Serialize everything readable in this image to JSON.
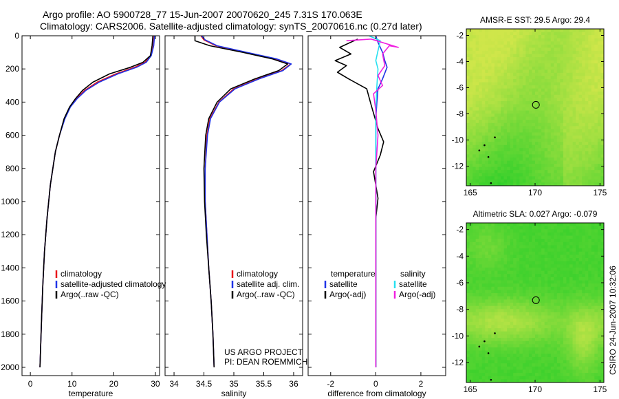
{
  "header": {
    "line1": "Argo profile: AO 5900728_77 15-Jun-2007 20070620_245 7.31S 170.063E",
    "line2": "Climatology: CARS2006. Satellite-adjusted climatology: synTS_20070616.nc (0.27d later)"
  },
  "footer": {
    "project": "US ARGO PROJECT",
    "pi": "PI: DEAN ROEMMICH",
    "stamp": "CSIRO 24-Jun-2007 10:32:06"
  },
  "colors": {
    "climatology": "#e8161a",
    "satellite": "#1f33e6",
    "argo": "#000000",
    "sat_salinity": "#26e0f0",
    "argo_salinity": "#f020e0",
    "map_green": "#2fcf2a",
    "map_yellow": "#cfe64a"
  },
  "chart_data": [
    {
      "type": "line",
      "name": "temperature",
      "xlabel": "temperature",
      "xlim": [
        -2,
        31
      ],
      "ylim": [
        2050,
        0
      ],
      "xticks": [
        "0",
        "10",
        "20",
        "30"
      ],
      "xtick_values": [
        0,
        10,
        20,
        30
      ],
      "yticks": [
        "0",
        "200",
        "400",
        "600",
        "800",
        "1000",
        "1200",
        "1400",
        "1600",
        "1800",
        "2000"
      ],
      "ytick_values": [
        0,
        200,
        400,
        600,
        800,
        1000,
        1200,
        1400,
        1600,
        1800,
        2000
      ],
      "legend": [
        "climatology",
        "satellite-adjusted climatology",
        "Argo(..raw -QC)"
      ],
      "series": [
        {
          "name": "climatology",
          "x": [
            29.7,
            29.5,
            28.9,
            27.5,
            25.0,
            20.5,
            16.0,
            13.0,
            11.0,
            9.5,
            8.2,
            7.0,
            6.0,
            4.8,
            4.0,
            3.4,
            3.0,
            2.7,
            2.5,
            2.3
          ],
          "y": [
            0,
            60,
            120,
            160,
            190,
            230,
            280,
            330,
            380,
            430,
            500,
            600,
            700,
            900,
            1100,
            1300,
            1500,
            1700,
            1850,
            2000
          ]
        },
        {
          "name": "satellite",
          "x": [
            29.8,
            29.6,
            29.0,
            27.8,
            25.5,
            21.0,
            16.5,
            13.3,
            11.2,
            9.6,
            8.3,
            7.0,
            6.0,
            4.8,
            4.0,
            3.4,
            3.0,
            2.7,
            2.5,
            2.3
          ],
          "y": [
            0,
            60,
            120,
            160,
            190,
            230,
            280,
            330,
            380,
            430,
            500,
            600,
            700,
            900,
            1100,
            1300,
            1500,
            1700,
            1850,
            2000
          ]
        },
        {
          "name": "argo",
          "x": [
            29.4,
            29.2,
            28.8,
            27.0,
            24.0,
            19.0,
            15.0,
            12.5,
            10.8,
            9.4,
            8.1,
            7.0,
            6.0,
            4.8,
            4.0,
            3.4,
            3.0,
            2.7,
            2.5,
            2.3
          ],
          "y": [
            0,
            60,
            120,
            160,
            190,
            230,
            280,
            330,
            380,
            430,
            500,
            600,
            700,
            900,
            1100,
            1300,
            1500,
            1700,
            1850,
            2000
          ]
        }
      ]
    },
    {
      "type": "line",
      "name": "salinity",
      "xlabel": "salinity",
      "xlim": [
        33.85,
        36.15
      ],
      "ylim": [
        2050,
        0
      ],
      "xticks": [
        "34",
        "34.5",
        "35",
        "35.5",
        "36"
      ],
      "xtick_values": [
        34,
        34.5,
        35,
        35.5,
        36
      ],
      "legend": [
        "climatology",
        "satellite adj. clim.",
        "Argo(..raw -QC)"
      ],
      "series": [
        {
          "name": "climatology",
          "x": [
            34.45,
            34.5,
            34.7,
            35.2,
            35.7,
            35.95,
            35.8,
            35.4,
            35.0,
            34.75,
            34.6,
            34.55,
            34.52,
            34.52,
            34.55,
            34.58,
            34.62,
            34.65,
            34.67
          ],
          "y": [
            0,
            25,
            60,
            100,
            140,
            170,
            210,
            260,
            320,
            400,
            500,
            600,
            800,
            1000,
            1200,
            1400,
            1600,
            1800,
            2000
          ]
        },
        {
          "name": "satellite",
          "x": [
            34.46,
            34.52,
            34.72,
            35.22,
            35.72,
            35.96,
            35.82,
            35.42,
            35.02,
            34.76,
            34.61,
            34.56,
            34.52,
            34.52,
            34.55,
            34.58,
            34.62,
            34.65,
            34.67
          ],
          "y": [
            0,
            25,
            60,
            100,
            140,
            170,
            210,
            260,
            320,
            400,
            500,
            600,
            800,
            1000,
            1200,
            1400,
            1600,
            1800,
            2000
          ]
        },
        {
          "name": "argo",
          "x": [
            34.35,
            34.35,
            34.6,
            35.15,
            35.65,
            35.9,
            35.75,
            35.35,
            34.95,
            34.72,
            34.58,
            34.53,
            34.5,
            34.51,
            34.54,
            34.58,
            34.62,
            34.65,
            34.67
          ],
          "y": [
            0,
            30,
            60,
            100,
            140,
            170,
            210,
            260,
            320,
            400,
            500,
            600,
            800,
            1000,
            1200,
            1400,
            1600,
            1800,
            2000
          ]
        }
      ]
    },
    {
      "type": "line",
      "name": "difference",
      "xlabel": "difference from climatology",
      "xlim": [
        -3,
        3.1
      ],
      "ylim": [
        2050,
        0
      ],
      "xticks": [
        "-2",
        "0",
        "2"
      ],
      "xtick_values": [
        -2,
        0,
        2
      ],
      "legend_temperature": [
        "temperature",
        "satellite",
        "Argo(-adj)"
      ],
      "legend_salinity": [
        "salinity",
        "satellite",
        "Argo(-adj)"
      ],
      "series": [
        {
          "name": "temperature-satellite",
          "x": [
            0.0,
            0.1,
            0.3,
            0.4,
            0.5,
            0.3,
            0.1,
            0.05,
            0.0,
            0.0,
            0.0,
            0.0
          ],
          "y": [
            0,
            40,
            100,
            150,
            190,
            260,
            320,
            400,
            500,
            700,
            1000,
            2000
          ]
        },
        {
          "name": "temperature-argo",
          "x": [
            -0.8,
            -1.6,
            -1.1,
            -1.8,
            -1.3,
            -1.7,
            -1.2,
            -0.4,
            -0.2,
            0.1,
            0.35,
            0.2,
            -0.1,
            0.1,
            0.0,
            0.0
          ],
          "y": [
            20,
            70,
            110,
            150,
            180,
            220,
            260,
            320,
            420,
            560,
            640,
            720,
            820,
            980,
            1100,
            2000
          ]
        },
        {
          "name": "salinity-satellite",
          "x": [
            -0.3,
            0.2,
            0.1,
            0.0,
            0.1,
            0.05,
            0.0,
            0.0
          ],
          "y": [
            0,
            30,
            90,
            150,
            200,
            300,
            450,
            2000
          ]
        },
        {
          "name": "salinity-argo",
          "x": [
            -1.3,
            -0.2,
            1.0,
            0.6,
            0.3,
            0.4,
            0.1,
            0.3,
            -0.1,
            0.0,
            0.1,
            0.0,
            0.0
          ],
          "y": [
            30,
            20,
            70,
            60,
            110,
            180,
            240,
            300,
            350,
            450,
            600,
            800,
            2000
          ]
        }
      ]
    },
    {
      "type": "heatmap",
      "name": "sst-map",
      "title": "AMSR-E SST: 29.5 Argo: 29.4",
      "xticks": [
        "165",
        "170",
        "175"
      ],
      "xtick_values": [
        165,
        170,
        175
      ],
      "yticks": [
        "-2",
        "-4",
        "-6",
        "-8",
        "-10",
        "-12"
      ],
      "ytick_values": [
        -2,
        -4,
        -6,
        -8,
        -10,
        -12
      ],
      "xlim": [
        164.7,
        175.3
      ],
      "ylim": [
        -13.5,
        -1.5
      ],
      "marker": {
        "lon": 170.063,
        "lat": -7.31
      }
    },
    {
      "type": "heatmap",
      "name": "sla-map",
      "title": "Altimetric SLA: 0.027 Argo: -0.079",
      "xticks": [
        "165",
        "170",
        "175"
      ],
      "xtick_values": [
        165,
        170,
        175
      ],
      "yticks": [
        "-2",
        "-4",
        "-6",
        "-8",
        "-10",
        "-12"
      ],
      "ytick_values": [
        -2,
        -4,
        -6,
        -8,
        -10,
        -12
      ],
      "xlim": [
        164.7,
        175.3
      ],
      "ylim": [
        -13.5,
        -1.5
      ],
      "marker": {
        "lon": 170.063,
        "lat": -7.31
      }
    }
  ]
}
